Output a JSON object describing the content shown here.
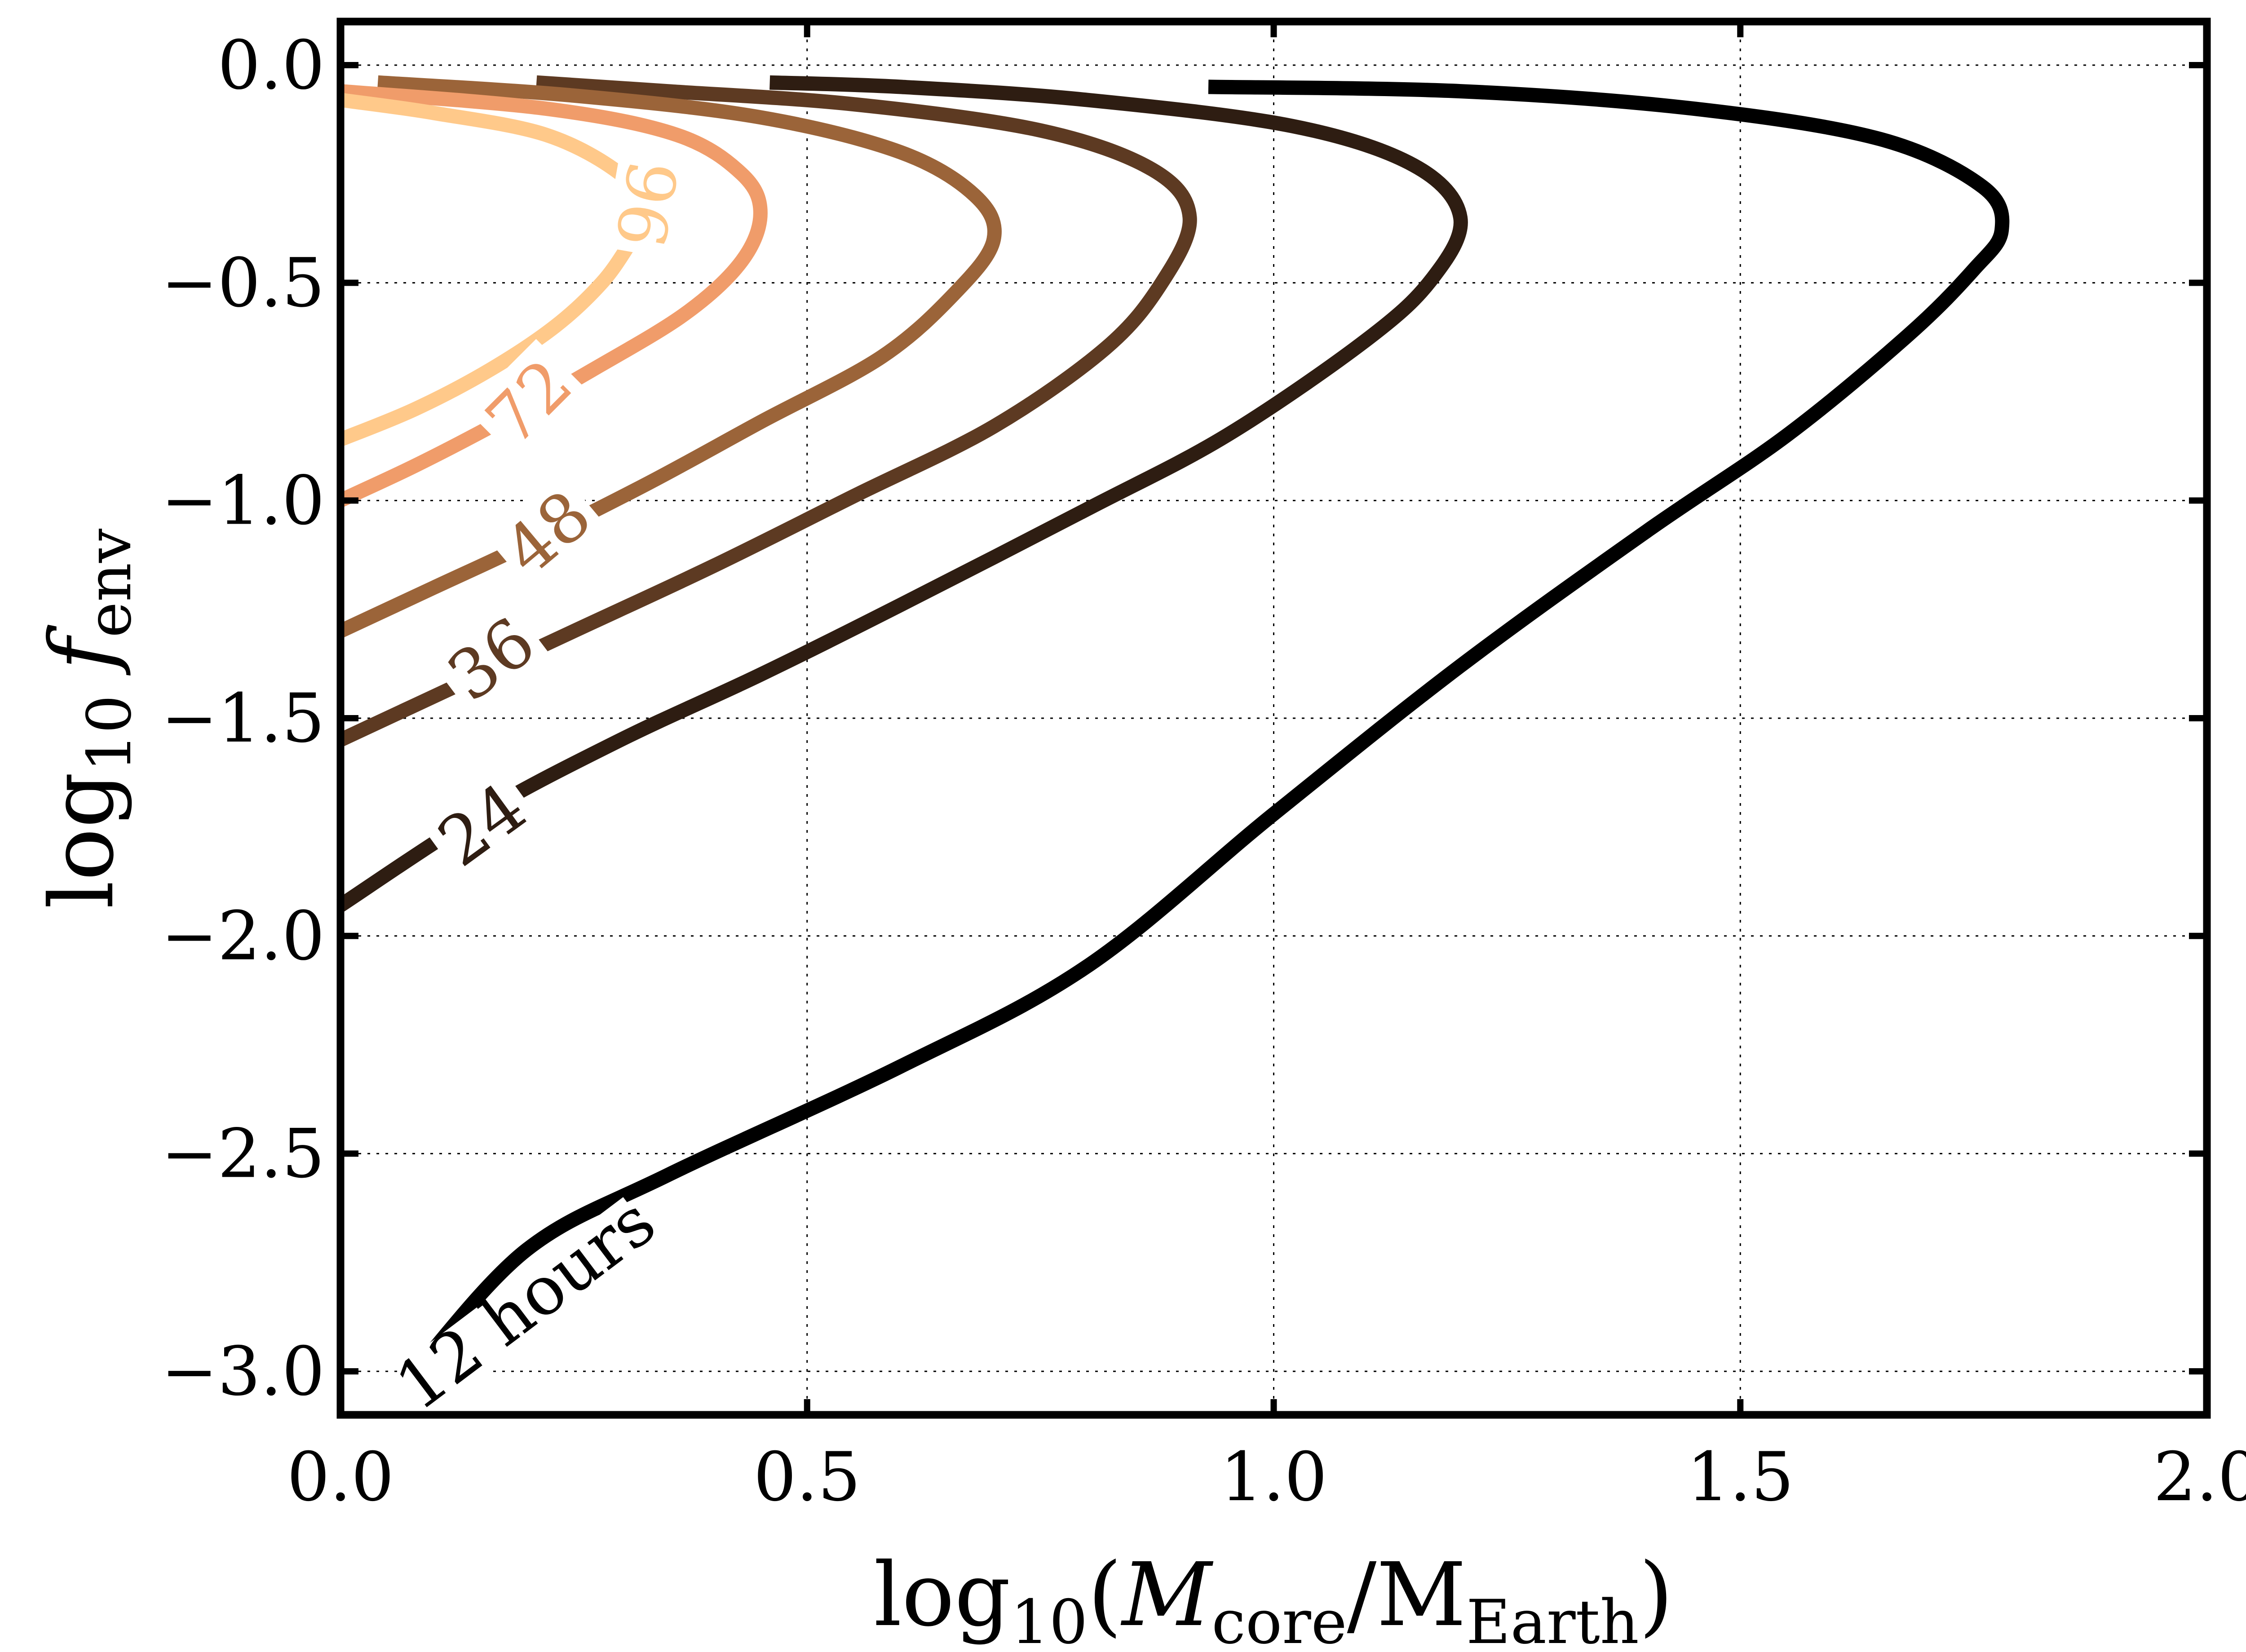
{
  "chart_data": {
    "type": "line",
    "subtype": "contour",
    "title": "",
    "xlabel": {
      "base": "log",
      "sub": "10",
      "paren_open": "(",
      "var": "M",
      "var_sub": "core",
      "slash": "/",
      "unit": "M",
      "unit_sub": "Earth",
      "paren_close": ")"
    },
    "ylabel": {
      "base": "log",
      "sub": "10",
      "var": "f",
      "var_sub": "env"
    },
    "xlim": [
      0.0,
      2.0
    ],
    "ylim": [
      -3.1,
      0.1
    ],
    "xticks": [
      0.0,
      0.5,
      1.0,
      1.5,
      2.0
    ],
    "xtick_labels": [
      "0.0",
      "0.5",
      "1.0",
      "1.5",
      "2.0"
    ],
    "yticks": [
      0.0,
      -0.5,
      -1.0,
      -1.5,
      -2.0,
      -2.5,
      -3.0
    ],
    "ytick_labels": [
      "0.0",
      "−0.5",
      "−1.0",
      "−1.5",
      "−2.0",
      "−2.5",
      "−3.0"
    ],
    "grid": true,
    "series": [
      {
        "name": "12 hours",
        "color": "#000000",
        "points": [
          [
            0.08,
            -3.0
          ],
          [
            0.2,
            -2.72
          ],
          [
            0.35,
            -2.55
          ],
          [
            0.6,
            -2.3
          ],
          [
            0.8,
            -2.07
          ],
          [
            1.0,
            -1.72
          ],
          [
            1.2,
            -1.38
          ],
          [
            1.4,
            -1.07
          ],
          [
            1.55,
            -0.85
          ],
          [
            1.68,
            -0.62
          ],
          [
            1.75,
            -0.47
          ],
          [
            1.78,
            -0.38
          ],
          [
            1.76,
            -0.28
          ],
          [
            1.65,
            -0.17
          ],
          [
            1.45,
            -0.1
          ],
          [
            1.2,
            -0.06
          ],
          [
            0.93,
            -0.05
          ]
        ]
      },
      {
        "name": "24",
        "color": "#2e1d12",
        "points": [
          [
            0.0,
            -1.93
          ],
          [
            0.15,
            -1.72
          ],
          [
            0.3,
            -1.55
          ],
          [
            0.45,
            -1.4
          ],
          [
            0.6,
            -1.24
          ],
          [
            0.8,
            -1.02
          ],
          [
            0.95,
            -0.85
          ],
          [
            1.1,
            -0.63
          ],
          [
            1.17,
            -0.49
          ],
          [
            1.2,
            -0.35
          ],
          [
            1.15,
            -0.23
          ],
          [
            1.02,
            -0.14
          ],
          [
            0.8,
            -0.08
          ],
          [
            0.6,
            -0.05
          ],
          [
            0.46,
            -0.04
          ]
        ]
      },
      {
        "name": "36",
        "color": "#5d3a22",
        "points": [
          [
            0.0,
            -1.55
          ],
          [
            0.12,
            -1.43
          ],
          [
            0.25,
            -1.3
          ],
          [
            0.4,
            -1.15
          ],
          [
            0.55,
            -0.99
          ],
          [
            0.7,
            -0.83
          ],
          [
            0.82,
            -0.65
          ],
          [
            0.88,
            -0.5
          ],
          [
            0.91,
            -0.35
          ],
          [
            0.87,
            -0.24
          ],
          [
            0.75,
            -0.15
          ],
          [
            0.55,
            -0.09
          ],
          [
            0.35,
            -0.06
          ],
          [
            0.21,
            -0.04
          ]
        ]
      },
      {
        "name": "48",
        "color": "#9b6439",
        "points": [
          [
            0.0,
            -1.3
          ],
          [
            0.1,
            -1.2
          ],
          [
            0.2,
            -1.1
          ],
          [
            0.33,
            -0.96
          ],
          [
            0.45,
            -0.82
          ],
          [
            0.58,
            -0.67
          ],
          [
            0.66,
            -0.52
          ],
          [
            0.7,
            -0.4
          ],
          [
            0.68,
            -0.3
          ],
          [
            0.6,
            -0.2
          ],
          [
            0.45,
            -0.12
          ],
          [
            0.25,
            -0.07
          ],
          [
            0.04,
            -0.04
          ]
        ]
      },
      {
        "name": "72",
        "color": "#f09c6a",
        "points": [
          [
            0.0,
            -1.0
          ],
          [
            0.08,
            -0.92
          ],
          [
            0.17,
            -0.82
          ],
          [
            0.27,
            -0.7
          ],
          [
            0.37,
            -0.57
          ],
          [
            0.43,
            -0.45
          ],
          [
            0.45,
            -0.34
          ],
          [
            0.43,
            -0.25
          ],
          [
            0.36,
            -0.16
          ],
          [
            0.22,
            -0.1
          ],
          [
            0.0,
            -0.06
          ]
        ]
      },
      {
        "name": "96",
        "color": "#ffc98a",
        "points": [
          [
            0.0,
            -0.86
          ],
          [
            0.08,
            -0.79
          ],
          [
            0.16,
            -0.7
          ],
          [
            0.23,
            -0.6
          ],
          [
            0.28,
            -0.5
          ],
          [
            0.31,
            -0.41
          ],
          [
            0.33,
            -0.34
          ],
          [
            0.3,
            -0.25
          ],
          [
            0.22,
            -0.16
          ],
          [
            0.1,
            -0.11
          ],
          [
            0.0,
            -0.08
          ]
        ]
      }
    ],
    "labels": [
      {
        "text": "12 hours",
        "series": 0,
        "x": 0.2,
        "y": -2.85,
        "angle": -37
      },
      {
        "text": "24",
        "series": 1,
        "x": 0.15,
        "y": -1.74,
        "angle": -36
      },
      {
        "text": "36",
        "series": 2,
        "x": 0.16,
        "y": -1.36,
        "angle": -37
      },
      {
        "text": "48",
        "series": 3,
        "x": 0.22,
        "y": -1.07,
        "angle": -40
      },
      {
        "text": "72",
        "series": 4,
        "x": 0.2,
        "y": -0.77,
        "angle": -45
      },
      {
        "text": "96",
        "series": 5,
        "x": 0.33,
        "y": -0.32,
        "angle": 100
      }
    ]
  }
}
